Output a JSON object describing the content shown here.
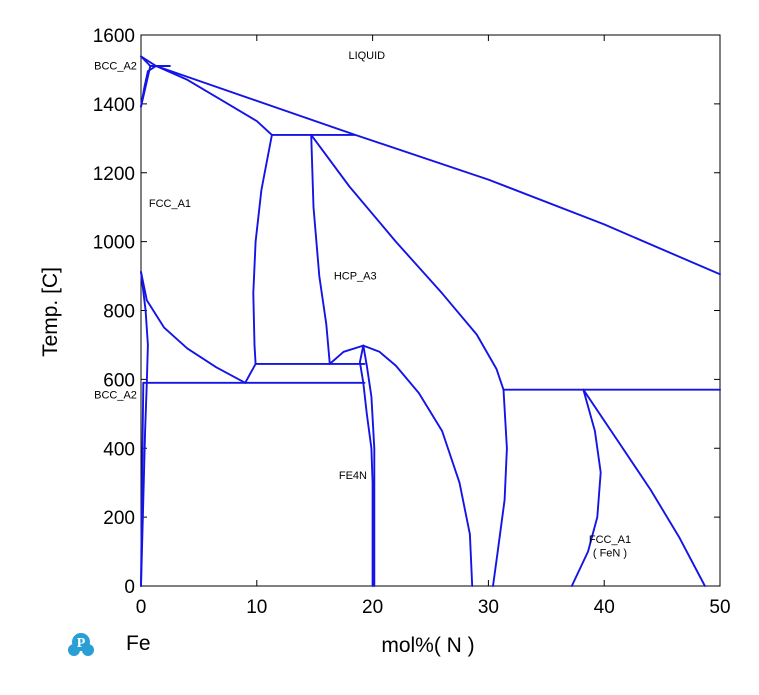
{
  "chart_data": {
    "type": "line",
    "title": "",
    "xlabel": "mol%(  N  )",
    "ylabel": "Temp.  [C]",
    "xlim": [
      0,
      50
    ],
    "ylim": [
      0,
      1600
    ],
    "xticks": [
      0,
      10,
      20,
      30,
      40,
      50
    ],
    "yticks": [
      0,
      200,
      400,
      600,
      800,
      1000,
      1200,
      1400,
      1600
    ],
    "grid": false,
    "line_color": "#1414e6",
    "base_element": "Fe",
    "regions": [
      {
        "label": "LIQUID",
        "x": 19.5,
        "y": 1530
      },
      {
        "label": "BCC_A2",
        "x": -2.2,
        "y": 1500
      },
      {
        "label": "FCC_A1",
        "x": 2.5,
        "y": 1100
      },
      {
        "label": "HCP_A3",
        "x": 18.5,
        "y": 890
      },
      {
        "label": "BCC_A2",
        "x": -2.2,
        "y": 545
      },
      {
        "label": "FE4N",
        "x": 18.3,
        "y": 310
      },
      {
        "label": "FCC_A1",
        "x": 40.5,
        "y": 125
      },
      {
        "label": "( FeN )",
        "x": 40.5,
        "y": 85
      }
    ],
    "series": [
      {
        "points": [
          [
            0,
            1538
          ],
          [
            1.3,
            1510
          ],
          [
            18.5,
            1310
          ],
          [
            30,
            1180
          ],
          [
            40,
            1050
          ],
          [
            50,
            905
          ]
        ]
      },
      {
        "points": [
          [
            0,
            1538
          ],
          [
            0.8,
            1510
          ]
        ]
      },
      {
        "points": [
          [
            0,
            1392
          ],
          [
            0.4,
            1450
          ],
          [
            0.8,
            1510
          ]
        ]
      },
      {
        "points": [
          [
            0,
            1392
          ],
          [
            0.3,
            1450
          ],
          [
            0.6,
            1495
          ],
          [
            1.3,
            1510
          ]
        ]
      },
      {
        "points": [
          [
            0.8,
            1510
          ],
          [
            2.5,
            1510
          ]
        ]
      },
      {
        "points": [
          [
            1.3,
            1510
          ],
          [
            4,
            1470
          ],
          [
            7,
            1410
          ],
          [
            10,
            1350
          ],
          [
            11.3,
            1310
          ]
        ]
      },
      {
        "points": [
          [
            11.3,
            1310
          ],
          [
            18.5,
            1310
          ]
        ]
      },
      {
        "points": [
          [
            11.3,
            1310
          ],
          [
            10.4,
            1150
          ],
          [
            9.9,
            1000
          ],
          [
            9.7,
            850
          ],
          [
            9.8,
            700
          ],
          [
            9.9,
            645
          ]
        ]
      },
      {
        "points": [
          [
            14.7,
            1310
          ],
          [
            14.9,
            1100
          ],
          [
            15.4,
            900
          ],
          [
            16,
            760
          ],
          [
            16.3,
            645
          ]
        ]
      },
      {
        "points": [
          [
            14.7,
            1310
          ],
          [
            18,
            1160
          ],
          [
            22,
            1000
          ],
          [
            26,
            850
          ],
          [
            29,
            730
          ],
          [
            30.7,
            630
          ],
          [
            31.3,
            570
          ]
        ]
      },
      {
        "points": [
          [
            0,
            912
          ],
          [
            0.5,
            830
          ],
          [
            2,
            750
          ],
          [
            4,
            690
          ],
          [
            6.5,
            635
          ],
          [
            9,
            590
          ]
        ]
      },
      {
        "points": [
          [
            9,
            590
          ],
          [
            9.9,
            645
          ]
        ]
      },
      {
        "points": [
          [
            9.9,
            645
          ],
          [
            19.3,
            645
          ]
        ]
      },
      {
        "points": [
          [
            9,
            590
          ],
          [
            19.3,
            590
          ]
        ]
      },
      {
        "points": [
          [
            0.2,
            590
          ],
          [
            9,
            590
          ]
        ]
      },
      {
        "points": [
          [
            0,
            912
          ],
          [
            0.4,
            800
          ],
          [
            0.6,
            700
          ],
          [
            0.5,
            590
          ],
          [
            0.35,
            450
          ],
          [
            0.2,
            250
          ],
          [
            0,
            0
          ]
        ]
      },
      {
        "points": [
          [
            0.2,
            590
          ],
          [
            0.15,
            450
          ],
          [
            0.08,
            250
          ],
          [
            0,
            0
          ]
        ]
      },
      {
        "points": [
          [
            16.3,
            645
          ],
          [
            17.5,
            680
          ],
          [
            19.2,
            698
          ],
          [
            20.6,
            680
          ],
          [
            22,
            640
          ],
          [
            24,
            560
          ],
          [
            26,
            450
          ],
          [
            27.5,
            300
          ],
          [
            28.4,
            150
          ],
          [
            28.6,
            0
          ]
        ]
      },
      {
        "points": [
          [
            19.2,
            698
          ],
          [
            18.9,
            650
          ],
          [
            19.2,
            590
          ],
          [
            19.5,
            500
          ],
          [
            19.9,
            400
          ],
          [
            20,
            300
          ],
          [
            20,
            0
          ]
        ]
      },
      {
        "points": [
          [
            19.2,
            698
          ],
          [
            19.5,
            640
          ],
          [
            19.9,
            550
          ],
          [
            20.15,
            400
          ],
          [
            20.15,
            0
          ]
        ]
      },
      {
        "points": [
          [
            31.3,
            570
          ],
          [
            50,
            570
          ]
        ]
      },
      {
        "points": [
          [
            31.3,
            570
          ],
          [
            31.6,
            400
          ],
          [
            31.4,
            250
          ],
          [
            30.8,
            100
          ],
          [
            30.4,
            0
          ]
        ]
      },
      {
        "points": [
          [
            38.2,
            570
          ],
          [
            39.2,
            450
          ],
          [
            39.7,
            330
          ],
          [
            39.4,
            200
          ],
          [
            38.6,
            100
          ],
          [
            37.2,
            0
          ]
        ]
      },
      {
        "points": [
          [
            38.2,
            570
          ],
          [
            41,
            430
          ],
          [
            44,
            280
          ],
          [
            46.5,
            140
          ],
          [
            48.7,
            0
          ]
        ]
      }
    ]
  }
}
